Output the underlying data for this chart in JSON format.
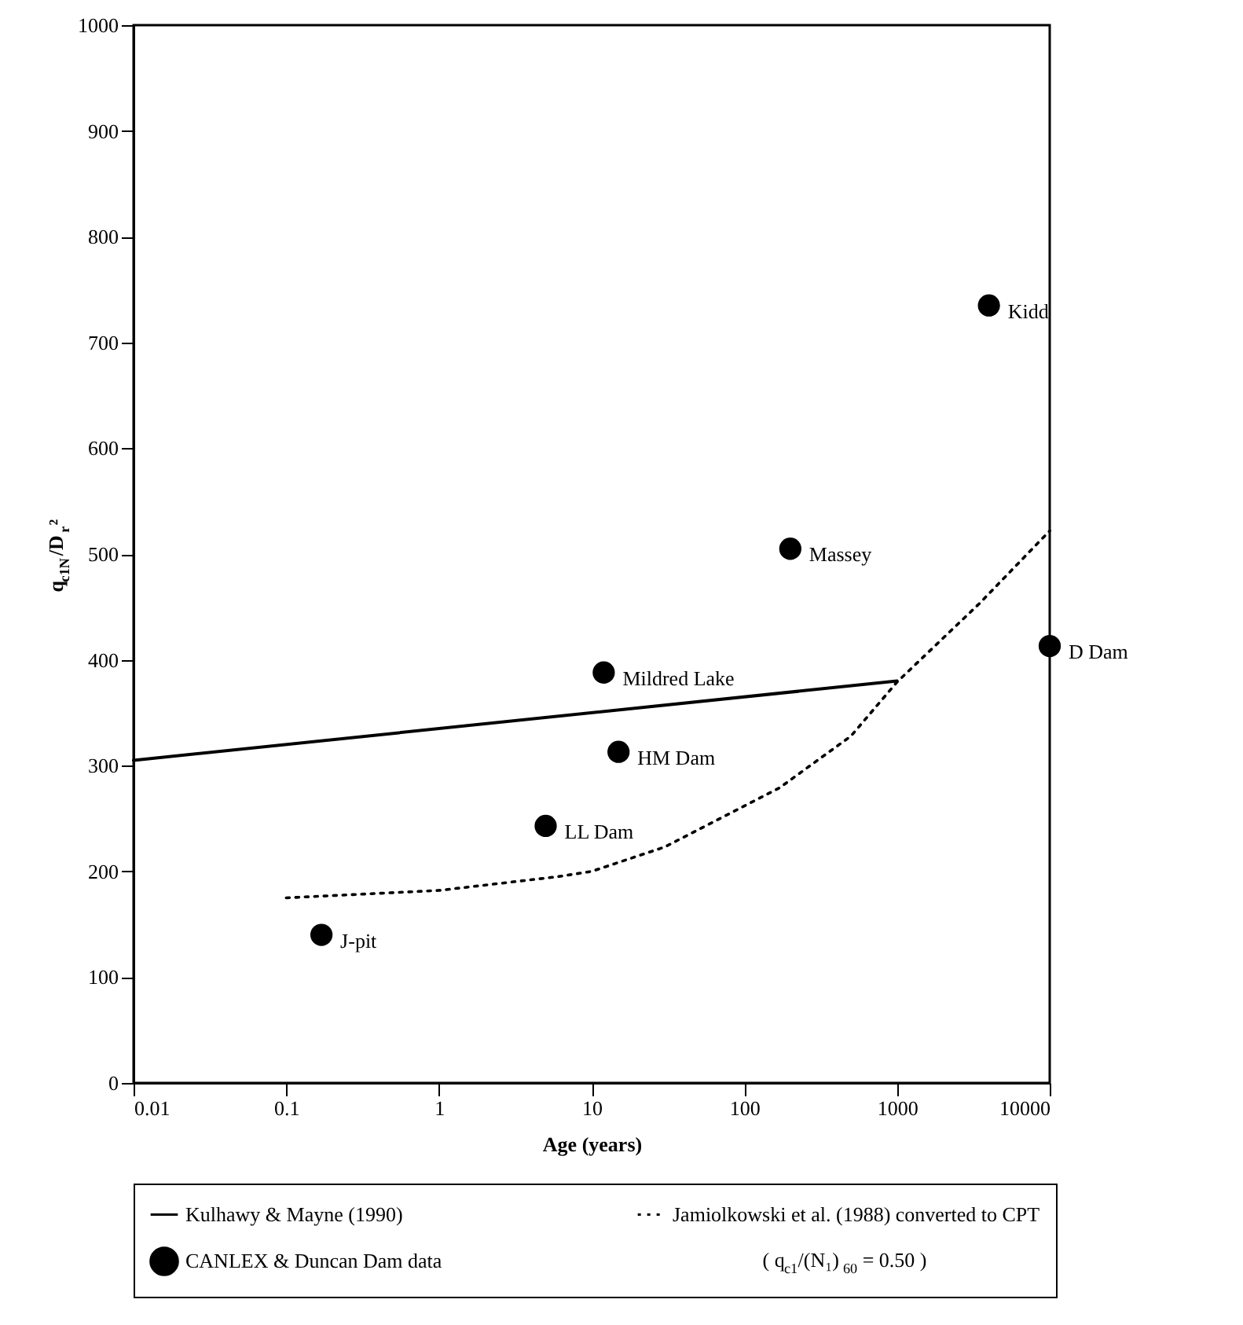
{
  "chart_data": {
    "type": "scatter",
    "xlabel": "Age (years)",
    "ylabel": "q$_{c1N}$/D$_{r}$²",
    "log": "x",
    "xlim": [
      0.01,
      10000
    ],
    "xticks": [
      0.01,
      0.1,
      1,
      10,
      100,
      1000,
      10000
    ],
    "ylim": [
      0,
      1000
    ],
    "yticks": [
      0,
      100,
      200,
      300,
      400,
      500,
      600,
      700,
      800,
      900,
      1000
    ],
    "grid": false,
    "legend": "bottom",
    "series": [
      {
        "name": "Kulhawy & Mayne (1990)",
        "type": "line",
        "line_style": "solid",
        "marker": "none",
        "color": "#000000",
        "x": [
          0.01,
          1000
        ],
        "values": [
          305,
          380
        ]
      },
      {
        "name": "Jamiolkowski et al. (1988) converted to CPT",
        "type": "line",
        "line_style": "dotted",
        "marker": "none",
        "color": "#000000",
        "x": [
          0.1,
          1,
          6,
          10,
          30,
          170,
          500,
          1000,
          3450,
          10000
        ],
        "values": [
          175,
          182,
          195,
          200,
          223,
          279,
          328,
          379,
          453,
          522
        ]
      },
      {
        "name": "CANLEX & Duncan Dam data",
        "type": "scatter",
        "marker": "circle",
        "color": "#000000",
        "x": [
          0.17,
          5,
          12,
          15,
          200,
          4000,
          10000
        ],
        "values": [
          140,
          243,
          388,
          313,
          505,
          735,
          413
        ]
      }
    ],
    "annotations": [
      {
        "text": "J-pit",
        "x": 0.17,
        "y": 140
      },
      {
        "text": "LL Dam",
        "x": 5,
        "y": 243
      },
      {
        "text": "Mildred Lake",
        "x": 12,
        "y": 388
      },
      {
        "text": "HM Dam",
        "x": 15,
        "y": 313
      },
      {
        "text": "Massey",
        "x": 200,
        "y": 505
      },
      {
        "text": "Kidd",
        "x": 4000,
        "y": 735
      },
      {
        "text": "D Dam",
        "x": 10000,
        "y": 413
      },
      "( q$_{c1}$/(N₁)$_{60}$ = 0.50 )"
    ]
  }
}
